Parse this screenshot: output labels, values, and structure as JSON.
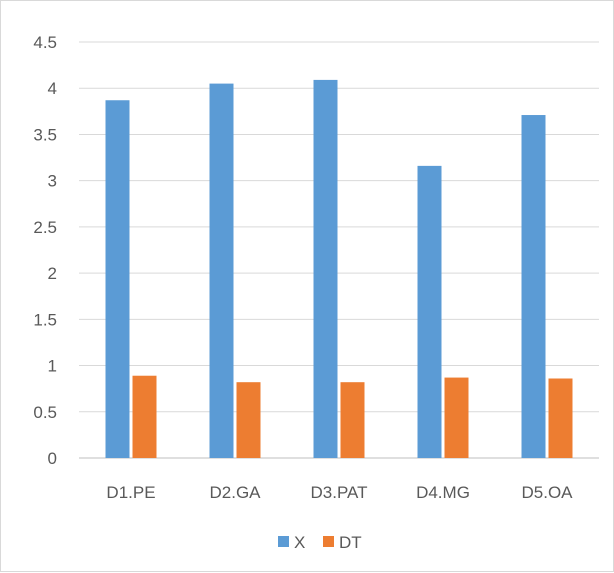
{
  "chart_data": {
    "type": "bar",
    "title": "",
    "xlabel": "",
    "ylabel": "",
    "categories": [
      "D1.PE",
      "D2.GA",
      "D3.PAT",
      "D4.MG",
      "D5.OA"
    ],
    "series": [
      {
        "name": "X",
        "color": "#5b9bd5",
        "values": [
          3.87,
          4.05,
          4.09,
          3.16,
          3.71
        ]
      },
      {
        "name": "DT",
        "color": "#ed7d31",
        "values": [
          0.89,
          0.82,
          0.82,
          0.87,
          0.86
        ]
      }
    ],
    "ylim": [
      0,
      4.5
    ],
    "yticks": [
      "0",
      "0.5",
      "1",
      "1.5",
      "2",
      "2.5",
      "3",
      "3.5",
      "4",
      "4.5"
    ],
    "grid": true,
    "legend": "bottom-center",
    "colors": {
      "grid": "#d9d9d9",
      "axis": "#bfbfbf",
      "text": "#595959"
    }
  }
}
